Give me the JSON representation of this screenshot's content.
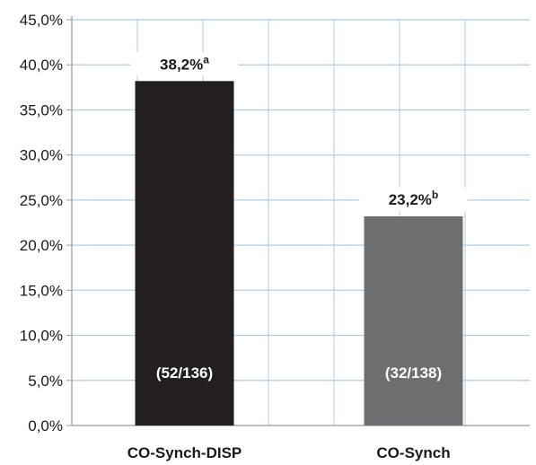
{
  "chart_data": {
    "type": "bar",
    "categories": [
      "CO-Synch-DISP",
      "CO-Synch"
    ],
    "values": [
      38.2,
      23.2
    ],
    "value_labels": [
      "38,2%",
      "23,2%"
    ],
    "value_superscripts": [
      "a",
      "b"
    ],
    "count_labels": [
      "(52/136)",
      "(32/138)"
    ],
    "y_ticks": [
      "0,0%",
      "5,0%",
      "10,0%",
      "15,0%",
      "20,0%",
      "25,0%",
      "30,0%",
      "35,0%",
      "40,0%",
      "45,0%"
    ],
    "ylim": [
      0,
      45
    ],
    "grid": true,
    "bar_colors": [
      "#231f20",
      "#6d6e70"
    ],
    "grid_color": "#a9cde6",
    "title": "",
    "xlabel": "",
    "ylabel": ""
  }
}
